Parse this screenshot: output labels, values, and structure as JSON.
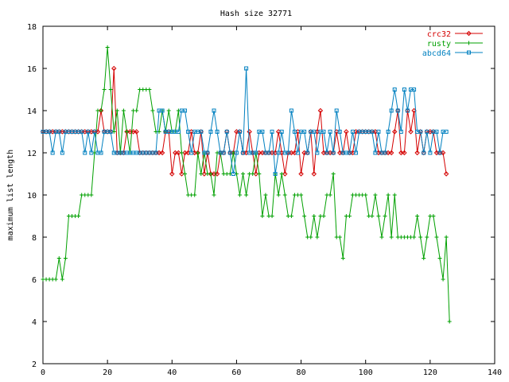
{
  "chart_data": {
    "type": "line",
    "title": "Hash size 32771",
    "xlabel": "",
    "ylabel": "maximum list length",
    "xlim": [
      0,
      140
    ],
    "ylim": [
      2,
      18
    ],
    "xticks": [
      0,
      20,
      40,
      60,
      80,
      100,
      120,
      140
    ],
    "yticks": [
      2,
      4,
      6,
      8,
      10,
      12,
      14,
      16,
      18
    ],
    "grid": false,
    "legend_position": "top-right",
    "series": [
      {
        "name": "crc32",
        "color": "#d40000",
        "marker": "diamond",
        "values": [
          13,
          13,
          13,
          13,
          13,
          13,
          13,
          13,
          13,
          13,
          13,
          13,
          13,
          13,
          13,
          13,
          13,
          13,
          14,
          13,
          13,
          13,
          16,
          12,
          12,
          12,
          13,
          13,
          13,
          13,
          12,
          12,
          12,
          12,
          12,
          12,
          12,
          12,
          13,
          13,
          11,
          12,
          12,
          11,
          12,
          12,
          13,
          12,
          12,
          13,
          11,
          12,
          11,
          11,
          11,
          12,
          12,
          13,
          12,
          12,
          13,
          13,
          12,
          12,
          13,
          12,
          11,
          12,
          12,
          12,
          12,
          12,
          12,
          13,
          12,
          11,
          12,
          12,
          12,
          13,
          11,
          12,
          12,
          13,
          11,
          13,
          14,
          12,
          12,
          12,
          12,
          13,
          12,
          12,
          13,
          12,
          12,
          13,
          13,
          13,
          13,
          13,
          13,
          13,
          12,
          12,
          12,
          12,
          12,
          13,
          14,
          12,
          12,
          14,
          13,
          14,
          12,
          13,
          12,
          13,
          13,
          13,
          12,
          12,
          12,
          11
        ]
      },
      {
        "name": "rusty",
        "color": "#00a000",
        "marker": "plus",
        "values": [
          6,
          6,
          6,
          6,
          6,
          7,
          6,
          7,
          9,
          9,
          9,
          9,
          10,
          10,
          10,
          10,
          12,
          14,
          14,
          15,
          17,
          15,
          13,
          14,
          12,
          14,
          13,
          12,
          14,
          14,
          15,
          15,
          15,
          15,
          14,
          13,
          13,
          14,
          13,
          14,
          13,
          13,
          14,
          12,
          11,
          10,
          10,
          10,
          12,
          11,
          12,
          11,
          11,
          10,
          12,
          12,
          11,
          11,
          11,
          12,
          11,
          10,
          11,
          10,
          11,
          11,
          12,
          11,
          9,
          10,
          9,
          9,
          11,
          10,
          11,
          10,
          9,
          9,
          10,
          10,
          10,
          9,
          8,
          8,
          9,
          8,
          9,
          9,
          10,
          10,
          11,
          8,
          8,
          7,
          9,
          9,
          10,
          10,
          10,
          10,
          10,
          9,
          9,
          10,
          9,
          8,
          9,
          10,
          8,
          10,
          8,
          8,
          8,
          8,
          8,
          8,
          9,
          8,
          7,
          8,
          9,
          9,
          8,
          7,
          6,
          8,
          4
        ]
      },
      {
        "name": "abcd64",
        "color": "#0080c0",
        "marker": "square",
        "values": [
          13,
          13,
          13,
          12,
          13,
          13,
          12,
          13,
          13,
          13,
          13,
          13,
          13,
          12,
          13,
          12,
          13,
          12,
          12,
          13,
          13,
          13,
          12,
          12,
          12,
          12,
          12,
          12,
          12,
          12,
          12,
          12,
          12,
          12,
          12,
          12,
          14,
          14,
          13,
          13,
          13,
          13,
          13,
          14,
          14,
          13,
          12,
          13,
          13,
          13,
          12,
          12,
          13,
          14,
          13,
          12,
          12,
          13,
          12,
          11,
          12,
          13,
          12,
          16,
          12,
          12,
          12,
          13,
          13,
          12,
          12,
          13,
          11,
          12,
          13,
          12,
          12,
          14,
          13,
          12,
          13,
          13,
          12,
          13,
          13,
          12,
          13,
          13,
          12,
          13,
          12,
          14,
          13,
          12,
          12,
          12,
          13,
          12,
          13,
          13,
          13,
          13,
          13,
          12,
          13,
          12,
          12,
          13,
          14,
          15,
          14,
          13,
          15,
          14,
          15,
          15,
          13,
          13,
          12,
          13,
          12,
          13,
          13,
          12,
          13,
          13
        ]
      }
    ]
  }
}
